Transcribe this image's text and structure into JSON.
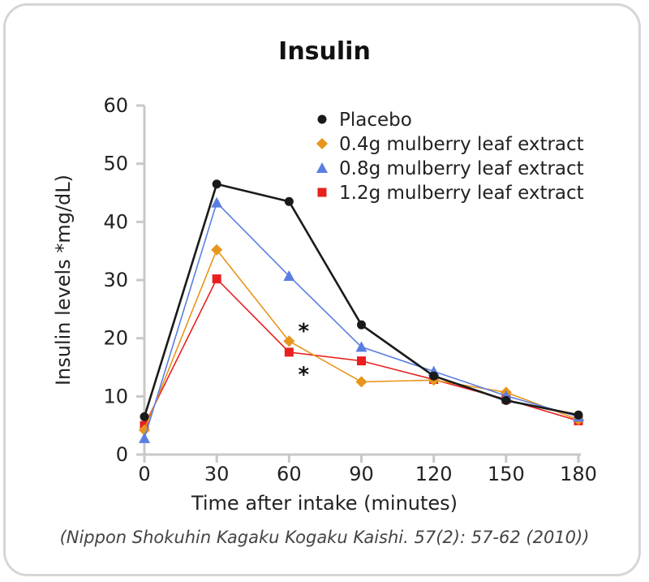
{
  "chart_data": {
    "type": "line",
    "title": "Insulin",
    "xlabel": "Time after intake (minutes)",
    "ylabel": "Insulin levels *mg/dL)",
    "x": [
      0,
      30,
      60,
      90,
      120,
      150,
      180
    ],
    "xticks": [
      "0",
      "30",
      "60",
      "90",
      "120",
      "150",
      "180"
    ],
    "yticks": [
      "0",
      "10",
      "20",
      "30",
      "40",
      "50",
      "60"
    ],
    "xlim": [
      0,
      180
    ],
    "ylim": [
      0,
      60
    ],
    "grid": false,
    "legend_position": "top-right",
    "series": [
      {
        "name": "Placebo",
        "marker": "circle",
        "color": "#1a1a1a",
        "values": [
          6.5,
          46.5,
          43.5,
          22.3,
          13.5,
          9.3,
          6.8
        ]
      },
      {
        "name": "0.4g mulberry leaf extract",
        "marker": "diamond",
        "color": "#e8951c",
        "values": [
          4.2,
          35.2,
          19.5,
          12.5,
          12.8,
          10.7,
          6.0
        ]
      },
      {
        "name": "0.8g mulberry leaf extract",
        "marker": "triangle",
        "color": "#5b7fe0",
        "values": [
          2.8,
          43.3,
          30.7,
          18.5,
          14.3,
          10.1,
          6.5
        ]
      },
      {
        "name": "1.2g mulberry leaf extract",
        "marker": "square",
        "color": "#e82020",
        "values": [
          5.0,
          30.2,
          17.6,
          16.1,
          12.9,
          9.5,
          5.8
        ]
      }
    ],
    "annotations": [
      {
        "text": "*",
        "x": 60,
        "y": 22.0
      },
      {
        "text": "*",
        "x": 60,
        "y": 14.5
      }
    ]
  },
  "citation": "(Nippon Shokuhin Kagaku Kogaku Kaishi. 57(2): 57-62 (2010))"
}
